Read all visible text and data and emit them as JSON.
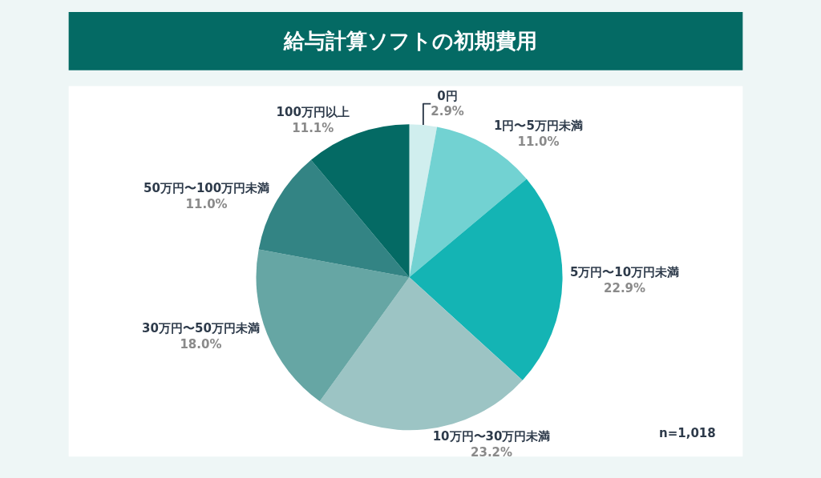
{
  "chart_data": {
    "type": "pie",
    "title": "給与計算ソフトの初期費用",
    "categories": [
      "0円",
      "1円〜5万円未満",
      "5万円〜10万円未満",
      "10万円〜30万円未満",
      "30万円〜50万円未満",
      "50万円〜100万円未満",
      "100万円以上"
    ],
    "values": [
      2.9,
      11.0,
      22.9,
      23.2,
      18.0,
      11.0,
      11.1
    ],
    "value_labels": [
      "2.9%",
      "11.0%",
      "22.9%",
      "23.2%",
      "18.0%",
      "11.0%",
      "11.1%"
    ],
    "colors": [
      "#d0eeee",
      "#72d2d2",
      "#14b4b4",
      "#9cc4c4",
      "#66a6a4",
      "#338484",
      "#046a64"
    ],
    "annotations": [
      "n=1,018"
    ],
    "legend": false
  }
}
